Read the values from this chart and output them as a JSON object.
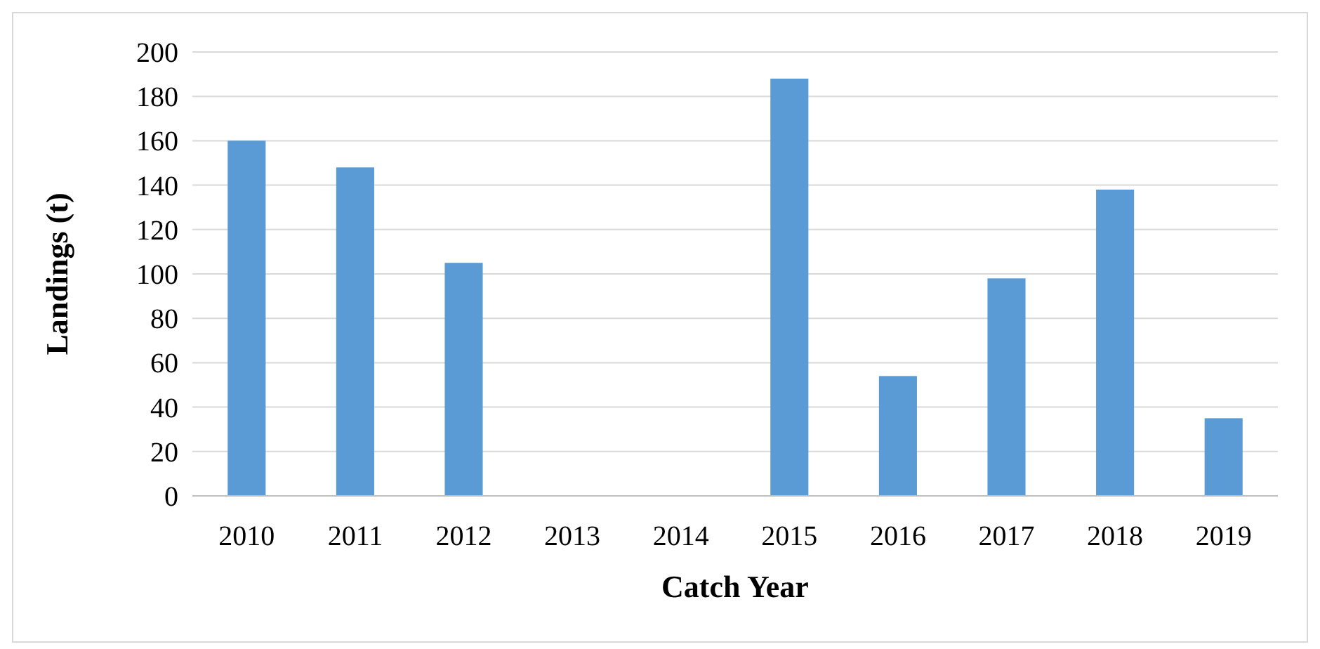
{
  "chart_data": {
    "type": "bar",
    "xlabel": "Catch Year",
    "ylabel": "Landings (t)",
    "categories": [
      "2010",
      "2011",
      "2012",
      "2013",
      "2014",
      "2015",
      "2016",
      "2017",
      "2018",
      "2019"
    ],
    "values": [
      160,
      148,
      105,
      null,
      null,
      188,
      54,
      98,
      138,
      35
    ],
    "color": "#5b9bd5",
    "ylim": [
      0,
      200
    ],
    "yticks": [
      0,
      20,
      40,
      60,
      80,
      100,
      120,
      140,
      160,
      180,
      200
    ],
    "grid": "y"
  }
}
